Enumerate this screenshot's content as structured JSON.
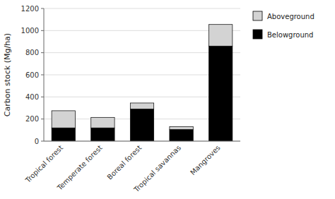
{
  "chart_data": {
    "type": "bar",
    "stacked": true,
    "categories": [
      "Tropical forest",
      "Temperate forest",
      "Boreal forest",
      "Tropical savannas",
      "Mangroves"
    ],
    "series": [
      {
        "name": "Belowground",
        "color": "#000000",
        "values": [
          120,
          120,
          290,
          105,
          860
        ]
      },
      {
        "name": "Aboveground",
        "color": "#d3d3d3",
        "values": [
          155,
          95,
          55,
          25,
          195
        ]
      }
    ],
    "ylabel": "Carbon stock (Mg/ha)",
    "ylim": [
      0,
      1200
    ],
    "yticks": [
      0,
      200,
      400,
      600,
      800,
      1000,
      1200
    ],
    "grid": true,
    "legend": "right"
  }
}
